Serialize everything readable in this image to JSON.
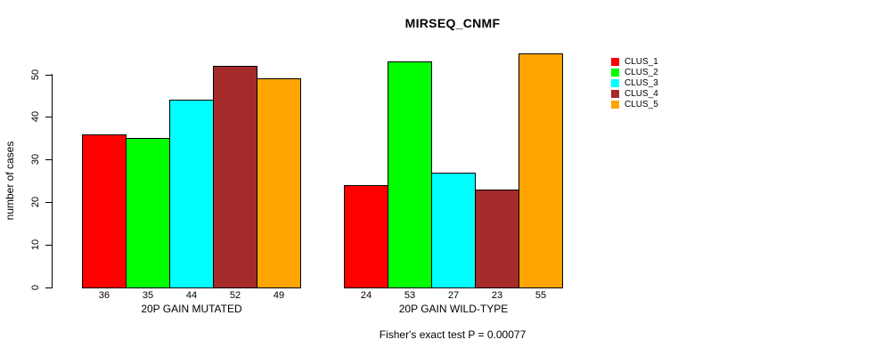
{
  "chart_data": {
    "type": "bar",
    "title": "MIRSEQ_CNMF",
    "ylabel": "number of cases",
    "xlabel_groups": [
      "20P GAIN MUTATED",
      "20P GAIN WILD-TYPE"
    ],
    "annotation": "Fisher's exact test P = 0.00077",
    "ylim": [
      0,
      55
    ],
    "yticks": [
      0,
      10,
      20,
      30,
      40,
      50
    ],
    "grid": false,
    "legend_position": "top-right",
    "bar_border_color": "#000000",
    "series": [
      {
        "name": "CLUS_1",
        "color": "#ff0000",
        "values": [
          36,
          24
        ]
      },
      {
        "name": "CLUS_2",
        "color": "#00ff00",
        "values": [
          35,
          53
        ]
      },
      {
        "name": "CLUS_3",
        "color": "#00ffff",
        "values": [
          44,
          27
        ]
      },
      {
        "name": "CLUS_4",
        "color": "#a52a2a",
        "values": [
          52,
          23
        ]
      },
      {
        "name": "CLUS_5",
        "color": "#ffa500",
        "values": [
          49,
          55
        ]
      }
    ]
  }
}
